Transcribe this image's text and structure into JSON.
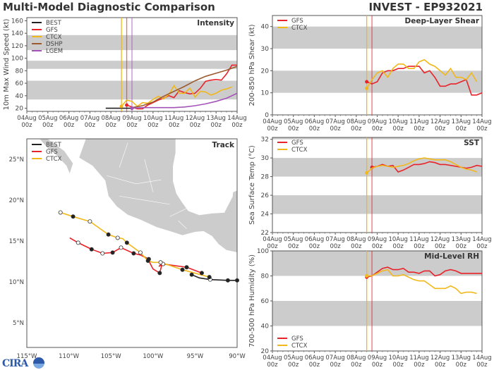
{
  "header": {
    "left_title": "Multi-Model Diagnostic Comparison",
    "right_title": "INVEST - EP932021"
  },
  "colors": {
    "BEST": "#222222",
    "GFS": "#e8232a",
    "CTCX": "#f2b81a",
    "DSHP": "#9c5a2e",
    "LGEM": "#a352b8",
    "band": "#cccccc",
    "land": "#cccccc"
  },
  "x_ticks": [
    "04Aug\n00z",
    "05Aug\n00z",
    "06Aug\n00z",
    "07Aug\n00z",
    "08Aug\n00z",
    "09Aug\n00z",
    "10Aug\n00z",
    "11Aug\n00z",
    "12Aug\n00z",
    "13Aug\n00z",
    "14Aug\n00z"
  ],
  "chart_data": [
    {
      "type": "line",
      "title": "Intensity",
      "ylabel": "10m Max Wind Speed (kt)",
      "xlabel": "",
      "xunit": "days since 04Aug 00z",
      "xlim": [
        0,
        10
      ],
      "ylim": [
        15,
        165
      ],
      "yticks": [
        20,
        40,
        60,
        80,
        100,
        120,
        140,
        160
      ],
      "bands": [
        [
          34,
          64
        ],
        [
          83,
          96
        ],
        [
          113,
          137
        ]
      ],
      "legend": "top-left",
      "vlines": [
        {
          "x": 4.5,
          "color": "CTCX"
        },
        {
          "x": 4.75,
          "color": "GFS"
        },
        {
          "x": 5.0,
          "color": "LGEM"
        }
      ],
      "series": [
        {
          "name": "BEST",
          "x": [
            3.75,
            4.0,
            4.25,
            4.5,
            4.75,
            5.0
          ],
          "y": [
            20,
            20,
            20,
            20,
            20,
            20
          ]
        },
        {
          "name": "GFS",
          "x": [
            4.75,
            5.0,
            5.25,
            5.5,
            5.75,
            6.0,
            6.25,
            6.5,
            6.75,
            7.0,
            7.25,
            7.5,
            7.75,
            8.0,
            8.25,
            8.5,
            8.75,
            9.0,
            9.25,
            9.5,
            9.75,
            10.0
          ],
          "y": [
            25,
            22,
            19,
            19,
            25,
            29,
            33,
            36,
            40,
            37,
            48,
            45,
            43,
            44,
            52,
            63,
            65,
            66,
            65,
            75,
            89,
            89
          ]
        },
        {
          "name": "CTCX",
          "x": [
            4.5,
            4.75,
            5.0,
            5.25,
            5.5,
            5.75,
            6.0,
            6.25,
            6.5,
            6.75,
            7.0,
            7.25,
            7.5,
            7.75,
            8.0,
            8.25,
            8.5,
            8.75,
            9.0,
            9.25,
            9.5,
            9.75
          ],
          "y": [
            23,
            33,
            31,
            23,
            29,
            28,
            34,
            39,
            35,
            42,
            56,
            44,
            44,
            52,
            38,
            47,
            46,
            41,
            44,
            49,
            51,
            54
          ]
        },
        {
          "name": "DSHP",
          "x": [
            5.0,
            5.5,
            6.0,
            6.5,
            7.0,
            7.5,
            8.0,
            8.5,
            9.0,
            9.5,
            10.0
          ],
          "y": [
            21,
            24,
            30,
            39,
            47,
            55,
            64,
            71,
            76,
            81,
            87
          ]
        },
        {
          "name": "LGEM",
          "x": [
            5.0,
            5.5,
            6.0,
            6.5,
            7.0,
            7.5,
            8.0,
            8.5,
            9.0,
            9.5,
            10.0
          ],
          "y": [
            20,
            21,
            21,
            21,
            21,
            22,
            24,
            27,
            31,
            36,
            44
          ]
        }
      ]
    },
    {
      "type": "line",
      "title": "Deep-Layer Shear",
      "ylabel": "200-850 hPa Shear (kt)",
      "xlim": [
        0,
        10
      ],
      "ylim": [
        0,
        45
      ],
      "yticks": [
        0,
        10,
        20,
        30,
        40
      ],
      "bands": [
        [
          10,
          20
        ],
        [
          30,
          40
        ]
      ],
      "legend": "top-left",
      "vlines": [
        {
          "x": 4.5,
          "color": "CTCX"
        },
        {
          "x": 4.75,
          "color": "GFS"
        }
      ],
      "series": [
        {
          "name": "GFS",
          "x": [
            4.5,
            4.75,
            5.0,
            5.25,
            5.5,
            5.75,
            6.0,
            6.25,
            6.5,
            6.75,
            7.0,
            7.25,
            7.5,
            7.75,
            8.0,
            8.25,
            8.5,
            8.75,
            9.0,
            9.25,
            9.5,
            9.75,
            10.0
          ],
          "y": [
            15,
            14,
            15,
            19,
            20,
            20,
            21,
            21,
            22,
            22,
            22,
            19,
            20,
            17,
            13,
            13,
            14,
            14,
            15,
            16,
            9,
            9,
            10
          ]
        },
        {
          "name": "CTCX",
          "x": [
            4.5,
            4.75,
            5.0,
            5.25,
            5.5,
            5.75,
            6.0,
            6.25,
            6.5,
            6.75,
            7.0,
            7.25,
            7.5,
            7.75,
            8.0,
            8.25,
            8.5,
            8.75,
            9.0,
            9.25,
            9.5,
            9.75
          ],
          "y": [
            12,
            16,
            19,
            20,
            17,
            21,
            23,
            23,
            21,
            21,
            24,
            25,
            23,
            22,
            20,
            18,
            21,
            17,
            17,
            16,
            19,
            15
          ]
        }
      ]
    },
    {
      "type": "line",
      "title": "SST",
      "ylabel": "Sea Surface Temp (°C)",
      "xlim": [
        0,
        10
      ],
      "ylim": [
        22,
        32.2
      ],
      "yticks": [
        22,
        24,
        26,
        28,
        30,
        32
      ],
      "bands": [
        [
          24,
          26
        ],
        [
          28,
          30
        ],
        [
          32,
          33
        ]
      ],
      "legend": "top-left",
      "vlines": [
        {
          "x": 4.5,
          "color": "CTCX"
        },
        {
          "x": 4.75,
          "color": "GFS"
        }
      ],
      "series": [
        {
          "name": "GFS",
          "x": [
            4.75,
            5.0,
            5.25,
            5.5,
            5.75,
            6.0,
            6.25,
            6.5,
            6.75,
            7.0,
            7.25,
            7.5,
            7.75,
            8.0,
            8.25,
            8.5,
            8.75,
            9.0,
            9.25,
            9.5,
            9.75,
            10.0
          ],
          "y": [
            29.0,
            29.1,
            29.3,
            29.1,
            29.2,
            28.5,
            28.7,
            29.0,
            29.3,
            29.3,
            29.4,
            29.6,
            29.5,
            29.3,
            29.3,
            29.2,
            29.1,
            29.0,
            28.9,
            29.0,
            29.2,
            29.1
          ]
        },
        {
          "name": "CTCX",
          "x": [
            4.5,
            4.75,
            5.0,
            5.25,
            5.5,
            5.75,
            6.0,
            6.25,
            6.5,
            6.75,
            7.0,
            7.25,
            7.5,
            7.75,
            8.0,
            8.25,
            8.5,
            8.75,
            9.0,
            9.25,
            9.5,
            9.75
          ],
          "y": [
            28.4,
            28.9,
            29.1,
            29.2,
            29.1,
            29.0,
            29.1,
            29.2,
            29.4,
            29.7,
            29.9,
            30.0,
            29.9,
            29.8,
            29.8,
            29.8,
            29.6,
            29.3,
            29.0,
            28.8,
            28.7,
            28.5
          ]
        }
      ]
    },
    {
      "type": "line",
      "title": "Mid-Level RH",
      "ylabel": "700-500 hPa Humidity (%)",
      "xlim": [
        0,
        10
      ],
      "ylim": [
        20,
        100
      ],
      "yticks": [
        20,
        40,
        60,
        80,
        100
      ],
      "bands": [
        [
          40,
          60
        ],
        [
          80,
          100
        ]
      ],
      "legend": "bottom-left",
      "vlines": [
        {
          "x": 4.5,
          "color": "CTCX"
        },
        {
          "x": 4.75,
          "color": "GFS"
        }
      ],
      "series": [
        {
          "name": "GFS",
          "x": [
            4.5,
            4.75,
            5.0,
            5.25,
            5.5,
            5.75,
            6.0,
            6.25,
            6.5,
            6.75,
            7.0,
            7.25,
            7.5,
            7.75,
            8.0,
            8.25,
            8.5,
            8.75,
            9.0,
            9.25,
            9.5,
            9.75,
            10.0
          ],
          "y": [
            79,
            80,
            83,
            86,
            87,
            85,
            85,
            86,
            83,
            83,
            82,
            84,
            84,
            80,
            81,
            84,
            85,
            84,
            82,
            82,
            82,
            82,
            82
          ]
        },
        {
          "name": "CTCX",
          "x": [
            4.5,
            4.75,
            5.0,
            5.25,
            5.5,
            5.75,
            6.0,
            6.25,
            6.5,
            6.75,
            7.0,
            7.25,
            7.5,
            7.75,
            8.0,
            8.25,
            8.5,
            8.75,
            9.0,
            9.25,
            9.5,
            9.75
          ],
          "y": [
            80,
            80,
            82,
            84,
            85,
            80,
            80,
            81,
            79,
            77,
            76,
            76,
            73,
            70,
            70,
            70,
            72,
            70,
            66,
            67,
            67,
            66
          ]
        }
      ]
    },
    {
      "type": "line",
      "title": "Track",
      "xlabel": "",
      "ylabel": "",
      "xlim": [
        -115,
        -90
      ],
      "ylim": [
        2,
        27.5
      ],
      "xticks": [
        "115°W",
        "110°W",
        "105°W",
        "100°W",
        "95°W",
        "90°W"
      ],
      "yticks": [
        "5°N",
        "10°N",
        "15°N",
        "20°N",
        "25°N"
      ],
      "legend": "top-left",
      "series": [
        {
          "name": "BEST",
          "lon": [
            -95.4,
            -94.5,
            -93.2,
            -91.1,
            -90.0
          ],
          "lat": [
            10.9,
            10.5,
            10.3,
            10.2,
            10.2
          ],
          "markers": [
            "filled",
            "none",
            "open",
            "filled",
            "filled"
          ]
        },
        {
          "name": "GFS",
          "lon": [
            -94.2,
            -96.0,
            -98.8,
            -99.3,
            -98.9,
            -99.2,
            -100.0,
            -100.4,
            -100.5,
            -101.5,
            -102.3,
            -103.8,
            -104.8,
            -106.0,
            -107.3,
            -108.9,
            -109.9
          ],
          "lat": [
            11.1,
            11.8,
            12.2,
            11.9,
            12.3,
            11.1,
            11.6,
            12.4,
            12.8,
            13.3,
            13.5,
            14.2,
            13.6,
            13.5,
            14.0,
            14.8,
            15.4
          ],
          "markers": [
            "filled",
            "filled",
            "open",
            "none",
            "none",
            "filled",
            "none",
            "none",
            "filled",
            "none",
            "filled",
            "open",
            "filled",
            "open",
            "filled",
            "open",
            "none"
          ]
        },
        {
          "name": "CTCX",
          "lon": [
            -93.3,
            -96.5,
            -99.1,
            -100.0,
            -100.6,
            -101.5,
            -103.1,
            -103.6,
            -104.2,
            -105.3,
            -107.5,
            -108.2,
            -109.5,
            -111.0
          ],
          "lat": [
            10.6,
            11.5,
            12.4,
            12.4,
            12.6,
            13.6,
            14.8,
            15.3,
            15.4,
            15.8,
            17.4,
            17.6,
            18.0,
            18.5
          ],
          "markers": [
            "filled",
            "filled",
            "open",
            "none",
            "filled",
            "open",
            "filled",
            "none",
            "open",
            "filled",
            "open",
            "none",
            "filled",
            "open"
          ]
        }
      ]
    }
  ],
  "logo": {
    "text": "CIRA"
  }
}
